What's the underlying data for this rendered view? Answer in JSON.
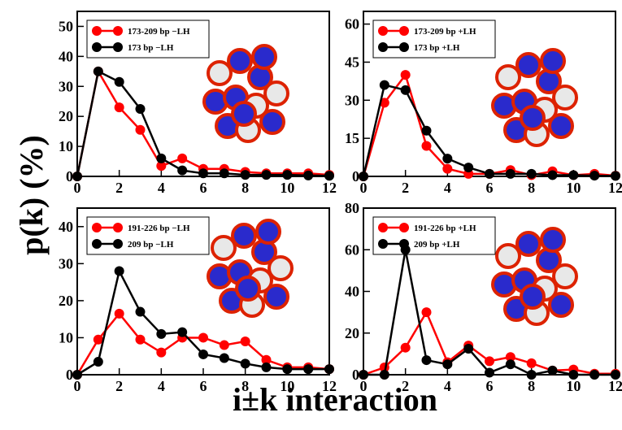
{
  "xlabel": "i±k interaction",
  "ylabel": "p(k) (%)",
  "chart_data": [
    {
      "type": "line",
      "x": [
        0,
        1,
        2,
        3,
        4,
        5,
        6,
        7,
        8,
        9,
        10,
        11,
        12
      ],
      "xlim": [
        0,
        12
      ],
      "xticks": [
        0,
        2,
        4,
        6,
        8,
        10,
        12
      ],
      "ylim": [
        0,
        55
      ],
      "yticks": [
        0,
        10,
        20,
        30,
        40,
        50
      ],
      "series": [
        {
          "name": "173-209 bp −LH",
          "color": "#ff0000",
          "values": [
            0,
            35,
            23,
            15.5,
            3.5,
            6,
            2.5,
            2.5,
            1.5,
            1,
            1,
            1,
            0.5
          ]
        },
        {
          "name": "173 bp −LH",
          "color": "#000000",
          "values": [
            0,
            35,
            31.5,
            22.5,
            6,
            2,
            1,
            1,
            0.5,
            0.5,
            0.5,
            0.3,
            0.2
          ]
        }
      ]
    },
    {
      "type": "line",
      "x": [
        0,
        1,
        2,
        3,
        4,
        5,
        6,
        7,
        8,
        9,
        10,
        11,
        12
      ],
      "xlim": [
        0,
        12
      ],
      "xticks": [
        0,
        2,
        4,
        6,
        8,
        10,
        12
      ],
      "ylim": [
        0,
        65
      ],
      "yticks": [
        0,
        15,
        30,
        45,
        60
      ],
      "series": [
        {
          "name": "173-209 bp +LH",
          "color": "#ff0000",
          "values": [
            0,
            29,
            40,
            12,
            3,
            1,
            1,
            2.5,
            0.5,
            2,
            0.5,
            1,
            0.3
          ]
        },
        {
          "name": "173 bp +LH",
          "color": "#000000",
          "values": [
            0,
            36,
            34,
            18,
            7,
            3.5,
            1,
            1,
            1,
            0.5,
            0.5,
            0.3,
            0.2
          ]
        }
      ]
    },
    {
      "type": "line",
      "x": [
        0,
        1,
        2,
        3,
        4,
        5,
        6,
        7,
        8,
        9,
        10,
        11,
        12
      ],
      "xlim": [
        0,
        12
      ],
      "xticks": [
        0,
        2,
        4,
        6,
        8,
        10,
        12
      ],
      "ylim": [
        0,
        45
      ],
      "yticks": [
        0,
        10,
        20,
        30,
        40
      ],
      "series": [
        {
          "name": "191-226 bp −LH",
          "color": "#ff0000",
          "values": [
            0,
            9.5,
            16.5,
            9.5,
            6,
            10,
            10,
            8,
            9,
            4,
            2,
            2,
            1.5
          ]
        },
        {
          "name": "209 bp −LH",
          "color": "#000000",
          "values": [
            0,
            3.5,
            28,
            17,
            11,
            11.5,
            5.5,
            4.5,
            3,
            2,
            1.5,
            1.5,
            1.5
          ]
        }
      ]
    },
    {
      "type": "line",
      "x": [
        0,
        1,
        2,
        3,
        4,
        5,
        6,
        7,
        8,
        9,
        10,
        11,
        12
      ],
      "xlim": [
        0,
        12
      ],
      "xticks": [
        0,
        2,
        4,
        6,
        8,
        10,
        12
      ],
      "ylim": [
        0,
        80
      ],
      "yticks": [
        0,
        20,
        40,
        60,
        80
      ],
      "series": [
        {
          "name": "191-226 bp +LH",
          "color": "#ff0000",
          "values": [
            0,
            3.5,
            13,
            30,
            6,
            14,
            6.5,
            8.5,
            5.5,
            2,
            2.5,
            0.5,
            0.5
          ]
        },
        {
          "name": "209 bp +LH",
          "color": "#000000",
          "values": [
            0,
            0,
            60,
            7,
            5,
            12.5,
            1,
            5,
            0,
            2,
            0,
            0,
            0
          ]
        }
      ]
    }
  ]
}
